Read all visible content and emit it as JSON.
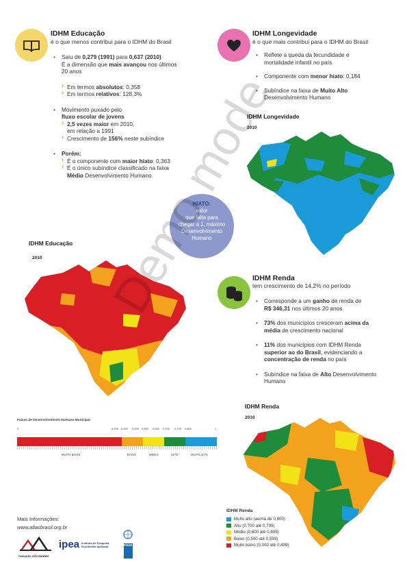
{
  "educacao": {
    "title": "IDHM Educação",
    "subtitle": "é o que menos contribui para o IDHM do Brasil",
    "b1_pre": "Saiu de ",
    "b1_v1": "0,279 (1991)",
    "b1_mid": " para ",
    "b1_v2": "0,637 (2010)",
    "b1_l2_pre": "É a dimensão que ",
    "b1_l2_bold": "mais avançou",
    "b1_l2_post": " nos últimos",
    "b1_l3": "20 anos",
    "abs_pre": "Em termos ",
    "abs_bold": "absolutos",
    "abs_val": ": 0,358",
    "rel_pre": "Em termos ",
    "rel_bold": "relativos",
    "rel_val": ": 128,3%",
    "b2_l1": "Movimento puxado pelo",
    "b2_l2": "fluxo escolar de jovens",
    "b2_s1_bold": "2,5 vezes maior",
    "b2_s1_post": " em 2010,",
    "b2_s1_l2": "em relação a 1991",
    "b2_s2_pre": "Crescimento de ",
    "b2_s2_bold": "156%",
    "b2_s2_post": " neste subíndice",
    "b3_title": "Porém:",
    "b3_s1_pre": "É o componente com ",
    "b3_s1_bold": "maior hiato",
    "b3_s1_post": ": 0,363",
    "b3_s2_l1": "É o único subíndice classificado na faixa",
    "b3_s2_bold": "Médio",
    "b3_s2_post": " Desenvolvimento Humano",
    "map_title": "IDHM Educação",
    "map_year": "2010"
  },
  "longevidade": {
    "title": "IDHM Longevidade",
    "subtitle": "é o que mais contribui para o IDHM do Brasil",
    "b1_l1": "Reflete a queda da fecundidade e",
    "b1_l2": "mortalidade infantil no país",
    "b2_pre": "Componente com ",
    "b2_bold": "menor hiato",
    "b2_post": ": 0,184",
    "b3_pre": "Subíndice na faixa de ",
    "b3_bold": "Muito Alto",
    "b3_l2": "Desenvolvimento Humano",
    "map_title": "IDHM Longevidade",
    "map_year": "2010"
  },
  "hiato": {
    "title": "HIATO:",
    "l1": "valor",
    "l2": "que falta para",
    "l3": "chegar a 1, máximo",
    "l4": "Desenvolvimento",
    "l5": "Humano"
  },
  "renda": {
    "title": "IDHM Renda",
    "subtitle": "tem crescimento de 14,2% no período",
    "b1_pre": "Corresponde a um ",
    "b1_bold": "ganho",
    "b1_post": " de renda de",
    "b1_val": "R$ 346,31",
    "b1_l2": " nos últimos 20 anos",
    "b2_bold1": "73%",
    "b2_mid": " dos municípios cresceram ",
    "b2_bold2": "acima da",
    "b2_bold3": "média",
    "b2_post": " de crescimento nacional",
    "b3_bold1": "11%",
    "b3_mid": " dos municípios com IDHM Renda",
    "b3_bold2": "superior ao do Brasil",
    "b3_post": ", evidenciando a",
    "b3_bold3": "concentração de renda",
    "b3_post2": " no país",
    "b4_pre": "Subíndice na faixa de ",
    "b4_bold": "Alto",
    "b4_post": " Desenvolvimento",
    "b4_l2": "Humano",
    "map_title": "IDHM Renda",
    "map_year": "2010"
  },
  "scale": {
    "title": "Faixas de Desenvolvimento Humano Municipal",
    "t0": "0",
    "t1": "0,499",
    "t2": "0,500",
    "t3": "0,599",
    "t4": "0,600",
    "t5": "0,699",
    "t6": "0,700",
    "t7": "0,799",
    "t8": "0,800",
    "t9": "1",
    "l_muito_baixo": "MUITO BAIXO",
    "l_baixo": "BAIXO",
    "l_medio": "MÉDIO",
    "l_alto": "ALTO",
    "l_muito_alto": "MUITO ALTO"
  },
  "legend": {
    "title": "IDHM Renda",
    "items": [
      {
        "label": "Muito alto (acima de 0,800)",
        "color": "#1a9ad6"
      },
      {
        "label": "Alto (0,700 até 0,799)",
        "color": "#1e8c3a"
      },
      {
        "label": "Médio (0,600 até 0,699)",
        "color": "#f2e318"
      },
      {
        "label": "Baixo (0,500 até 0,599)",
        "color": "#f2a21c"
      },
      {
        "label": "Muito baixo (0,000 até 0,499)",
        "color": "#d91f26"
      }
    ]
  },
  "footer": {
    "info": "Mais Informações:",
    "url": "www.atlasbrasil.org.br",
    "ipea": "ipea",
    "ipea_sub1": "Instituto de Pesquisa",
    "ipea_sub2": "Econômica Aplicada",
    "fjp": "FUNDAÇÃO JOÃO PINHEIRO",
    "pnud": "PNUD"
  },
  "watermark": "Demo mode",
  "colors": {
    "yellow": "#f5d66a",
    "pink": "#e872b0",
    "green": "#8ac43f",
    "hiato": "#8d99cc",
    "red": "#d91f26",
    "orange": "#f2a21c",
    "medio": "#f2e318",
    "alto": "#1e8c3a",
    "muito_alto": "#1a9ad6"
  }
}
